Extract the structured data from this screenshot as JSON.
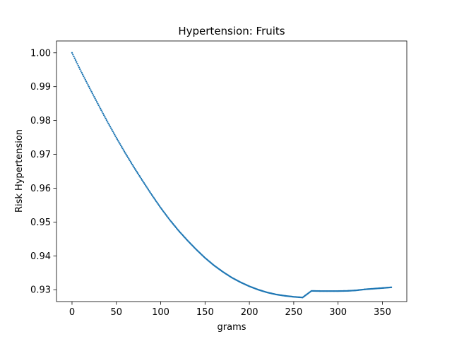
{
  "chart_data": {
    "type": "scatter",
    "title": "Hypertension: Fruits",
    "xlabel": "grams",
    "ylabel": "Risk Hypertension",
    "xlim": [
      -17.5,
      377.5
    ],
    "ylim": [
      0.9265,
      1.0035
    ],
    "xticks": [
      0,
      50,
      100,
      150,
      200,
      250,
      300,
      350
    ],
    "yticks": [
      0.93,
      0.94,
      0.95,
      0.96,
      0.97,
      0.98,
      0.99,
      1.0
    ],
    "xtick_labels": [
      "0",
      "50",
      "100",
      "150",
      "200",
      "250",
      "300",
      "350"
    ],
    "ytick_labels": [
      "0.93",
      "0.94",
      "0.95",
      "0.96",
      "0.97",
      "0.98",
      "0.99",
      "1.00"
    ],
    "grid": false,
    "series": [
      {
        "color": "#1f77b4",
        "x": [
          0,
          10,
          20,
          30,
          40,
          50,
          60,
          70,
          80,
          90,
          100,
          110,
          120,
          130,
          140,
          150,
          160,
          170,
          180,
          190,
          200,
          210,
          220,
          230,
          240,
          250,
          260,
          270,
          280,
          290,
          300,
          310,
          320,
          330,
          340,
          350,
          360
        ],
        "y": [
          1.0,
          0.9946,
          0.9895,
          0.9845,
          0.9796,
          0.9749,
          0.9704,
          0.9661,
          0.962,
          0.958,
          0.9542,
          0.9507,
          0.9475,
          0.9446,
          0.9419,
          0.9394,
          0.9372,
          0.9353,
          0.9336,
          0.9322,
          0.931,
          0.93,
          0.9292,
          0.9286,
          0.9282,
          0.9279,
          0.9277,
          0.92965,
          0.9296,
          0.9296,
          0.9296,
          0.92965,
          0.9298,
          0.9301,
          0.9303,
          0.9305,
          0.9307
        ]
      }
    ]
  }
}
